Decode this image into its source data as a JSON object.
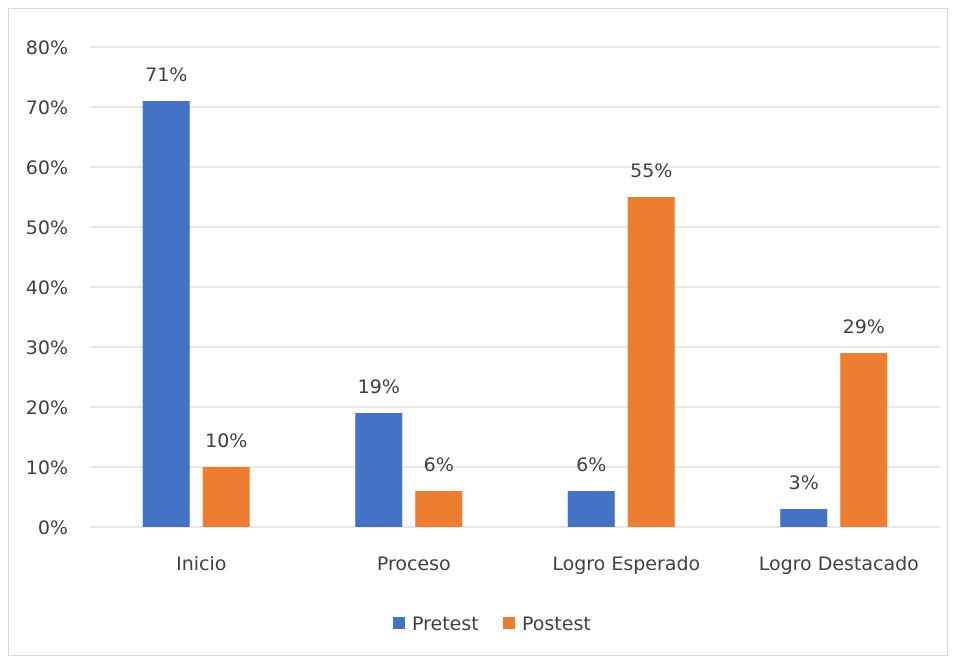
{
  "chart_data": {
    "type": "bar",
    "title": "",
    "xlabel": "",
    "ylabel": "",
    "categories": [
      "Inicio",
      "Proceso",
      "Logro Esperado",
      "Logro Destacado"
    ],
    "series": [
      {
        "name": "Pretest",
        "values": [
          71,
          19,
          6,
          3
        ],
        "labels": [
          "71%",
          "19%",
          "6%",
          "3%"
        ],
        "color": "#4472c4"
      },
      {
        "name": "Postest",
        "values": [
          10,
          6,
          55,
          29
        ],
        "labels": [
          "10%",
          "6%",
          "55%",
          "29%"
        ],
        "color": "#ed7d31"
      }
    ],
    "ylim": [
      0,
      80
    ],
    "yticks": [
      0,
      10,
      20,
      30,
      40,
      50,
      60,
      70,
      80
    ],
    "ytick_labels": [
      "0%",
      "10%",
      "20%",
      "30%",
      "40%",
      "50%",
      "60%",
      "70%",
      "80%"
    ],
    "grid": true,
    "legend": "bottom-center",
    "gridline_color": "#d9d9d9",
    "text_color": "#404040"
  }
}
